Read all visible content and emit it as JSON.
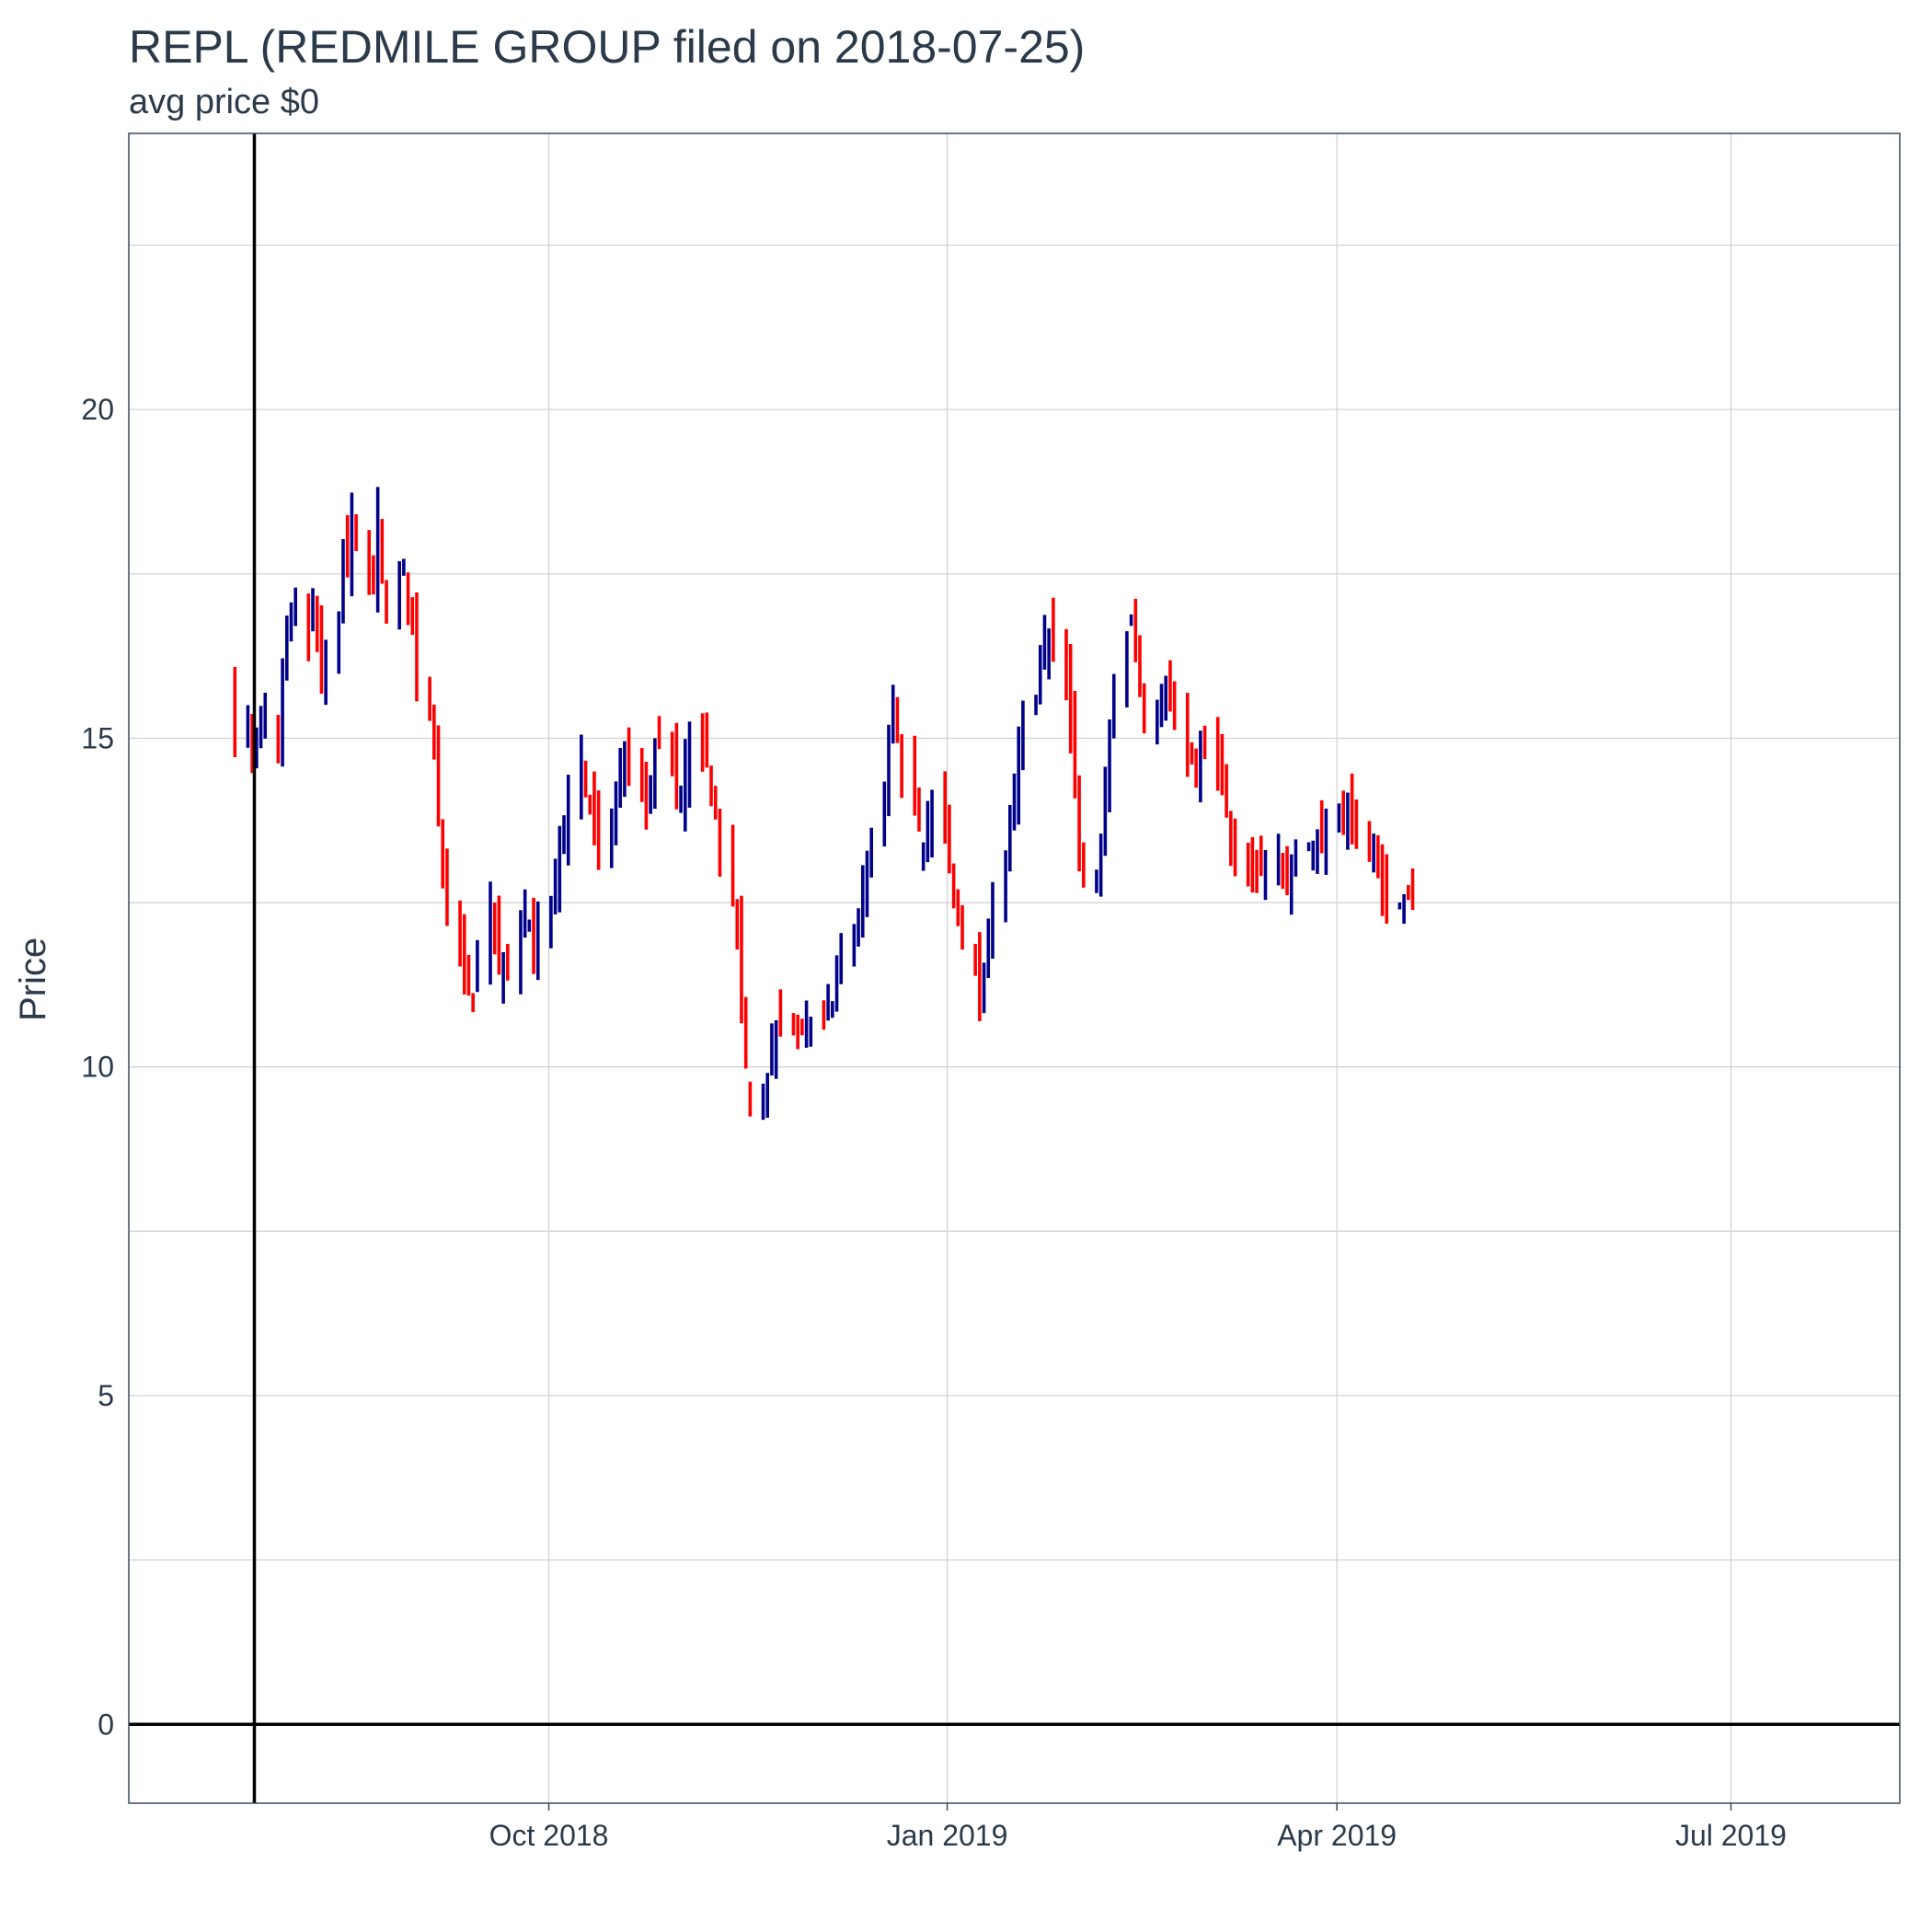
{
  "chart_data": {
    "type": "ohlc",
    "title": "REPL (REDMILE GROUP filed on 2018-07-25)",
    "subtitle": "avg price $0",
    "xlabel": "",
    "ylabel": "Price",
    "ylim": [
      -1.2,
      24.2
    ],
    "xlim": [
      "2018-06-26",
      "2019-08-09"
    ],
    "x_ticks": [
      {
        "date": "2018-10-01",
        "label": "Oct 2018"
      },
      {
        "date": "2019-01-01",
        "label": "Jan 2019"
      },
      {
        "date": "2019-04-01",
        "label": "Apr 2019"
      },
      {
        "date": "2019-07-01",
        "label": "Jul 2019"
      }
    ],
    "y_ticks": [
      0,
      5,
      10,
      15,
      20
    ],
    "grid": true,
    "reference_lines": {
      "vertical_date": "2018-07-25",
      "horizontal_value": 0
    },
    "colors": {
      "up": "#00008b",
      "down": "#ff0000",
      "reference": "#000000",
      "grid": "#d0d4d8",
      "text": "#2b3a4a"
    },
    "start_date": "2018-07-20",
    "trading_days_per_week": 5,
    "closes": [
      15.0,
      15.3,
      14.6,
      14.9,
      15.2,
      15.5,
      15.0,
      16.2,
      16.6,
      17.0,
      16.9,
      16.4,
      17.2,
      16.7,
      15.9,
      16.3,
      16.6,
      17.8,
      17.6,
      18.4,
      18.1,
      17.6,
      17.3,
      18.4,
      17.5,
      16.8,
      17.3,
      17.6,
      17.0,
      16.6,
      16.0,
      15.4,
      14.9,
      13.8,
      12.9,
      12.4,
      11.9,
      11.3,
      11.2,
      11.0,
      11.7,
      12.4,
      12.0,
      11.6,
      11.5,
      11.5,
      12.0,
      12.4,
      12.2,
      11.8,
      12.1,
      12.6,
      13.0,
      13.4,
      13.7,
      14.2,
      14.7,
      14.2,
      14.0,
      13.5,
      13.4,
      13.8,
      14.1,
      14.5,
      14.9,
      14.6,
      14.3,
      14.0,
      14.4,
      14.8,
      15.0,
      14.6,
      14.1,
      14.2,
      14.6,
      15.0,
      14.9,
      14.7,
      14.4,
      14.0,
      13.3,
      12.6,
      11.9,
      11.0,
      10.0,
      9.3,
      9.4,
      9.9,
      10.3,
      10.6,
      10.8,
      10.5,
      10.4,
      10.6,
      10.8,
      10.7,
      10.6,
      10.9,
      11.0,
      11.3,
      11.6,
      11.9,
      12.3,
      12.7,
      13.1,
      13.5,
      14.0,
      15.0,
      15.4,
      15.0,
      14.5,
      14.0,
      13.6,
      13.4,
      13.8,
      14.2,
      13.8,
      13.3,
      12.7,
      12.3,
      11.8,
      11.4,
      11.0,
      11.4,
      12.0,
      12.6,
      13.2,
      13.9,
      14.4,
      14.8,
      15.2,
      15.6,
      16.0,
      16.5,
      16.6,
      16.2,
      15.7,
      15.1,
      14.4,
      13.4,
      12.8,
      12.8,
      13.5,
      14.3,
      15.0,
      15.8,
      16.5,
      16.8,
      16.6,
      16.0,
      15.5,
      15.4,
      15.8,
      15.9,
      15.6,
      15.2,
      14.8,
      14.6,
      14.6,
      14.8,
      14.9,
      14.6,
      14.3,
      13.8,
      13.4,
      13.2,
      12.9,
      13.0,
      13.0,
      13.1,
      13.2,
      13.1,
      13.0,
      13.0,
      13.1,
      13.3,
      13.3,
      13.4,
      13.5,
      13.6,
      13.7,
      13.8,
      13.8,
      13.8,
      13.7,
      13.5,
      13.4,
      13.3,
      13.0,
      12.7,
      12.5,
      12.5,
      12.5,
      12.6,
      12.6
    ]
  }
}
